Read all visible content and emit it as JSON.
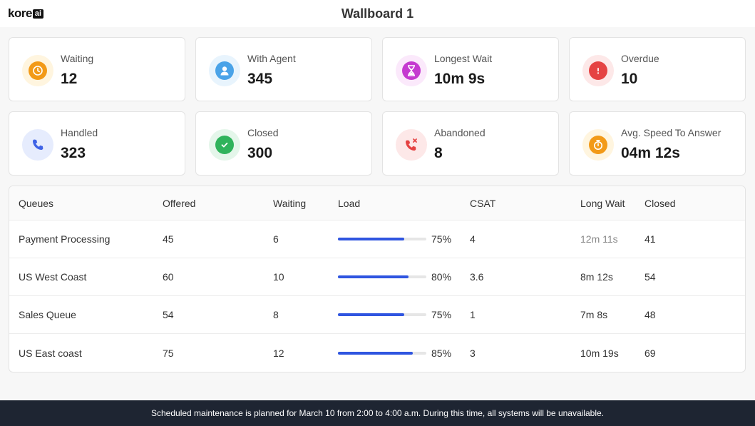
{
  "header": {
    "logo_text": "kore",
    "logo_badge": "ai",
    "title": "Wallboard 1"
  },
  "cards": [
    {
      "label": "Waiting",
      "value": "12",
      "icon": "clock-icon",
      "bg": "#fff5df",
      "fg": "#f29a18"
    },
    {
      "label": "With Agent",
      "value": "345",
      "icon": "user-icon",
      "bg": "#e8f4fd",
      "fg": "#4aa3e8"
    },
    {
      "label": "Longest Wait",
      "value": "10m 9s",
      "icon": "hourglass-icon",
      "bg": "#fbe9fb",
      "fg": "#c53ad0"
    },
    {
      "label": "Overdue",
      "value": "10",
      "icon": "alert-icon",
      "bg": "#fde8e8",
      "fg": "#e54343"
    },
    {
      "label": "Handled",
      "value": "323",
      "icon": "phone-icon",
      "bg": "#e6ecfd",
      "fg": "#3f63e6"
    },
    {
      "label": "Closed",
      "value": "300",
      "icon": "check-circle-icon",
      "bg": "#e4f6ea",
      "fg": "#2fb35b"
    },
    {
      "label": "Abandoned",
      "value": "8",
      "icon": "phone-missed-icon",
      "bg": "#fde8e8",
      "fg": "#e54343"
    },
    {
      "label": "Avg. Speed To Answer",
      "value": "04m 12s",
      "icon": "stopwatch-icon",
      "bg": "#fff5df",
      "fg": "#f29a18"
    }
  ],
  "table": {
    "columns": [
      "Queues",
      "Offered",
      "Waiting",
      "Load",
      "CSAT",
      "Long Wait",
      "Closed"
    ],
    "rows": [
      {
        "queue": "Payment Processing",
        "offered": "45",
        "waiting": "6",
        "load": 75,
        "load_label": "75%",
        "csat": "4",
        "long_wait": "12m 11s",
        "closed": "41"
      },
      {
        "queue": "US West Coast",
        "offered": "60",
        "waiting": "10",
        "load": 80,
        "load_label": "80%",
        "csat": "3.6",
        "long_wait": "8m 12s",
        "closed": "54"
      },
      {
        "queue": "Sales Queue",
        "offered": "54",
        "waiting": "8",
        "load": 75,
        "load_label": "75%",
        "csat": "1",
        "long_wait": "7m 8s",
        "closed": "48"
      },
      {
        "queue": "US East coast",
        "offered": "75",
        "waiting": "12",
        "load": 85,
        "load_label": "85%",
        "csat": "3",
        "long_wait": "10m 19s",
        "closed": "69"
      }
    ]
  },
  "footer": {
    "message": "Scheduled maintenance is planned for March 10 from 2:00 to 4:00 a.m. During this time, all systems will be unavailable."
  }
}
